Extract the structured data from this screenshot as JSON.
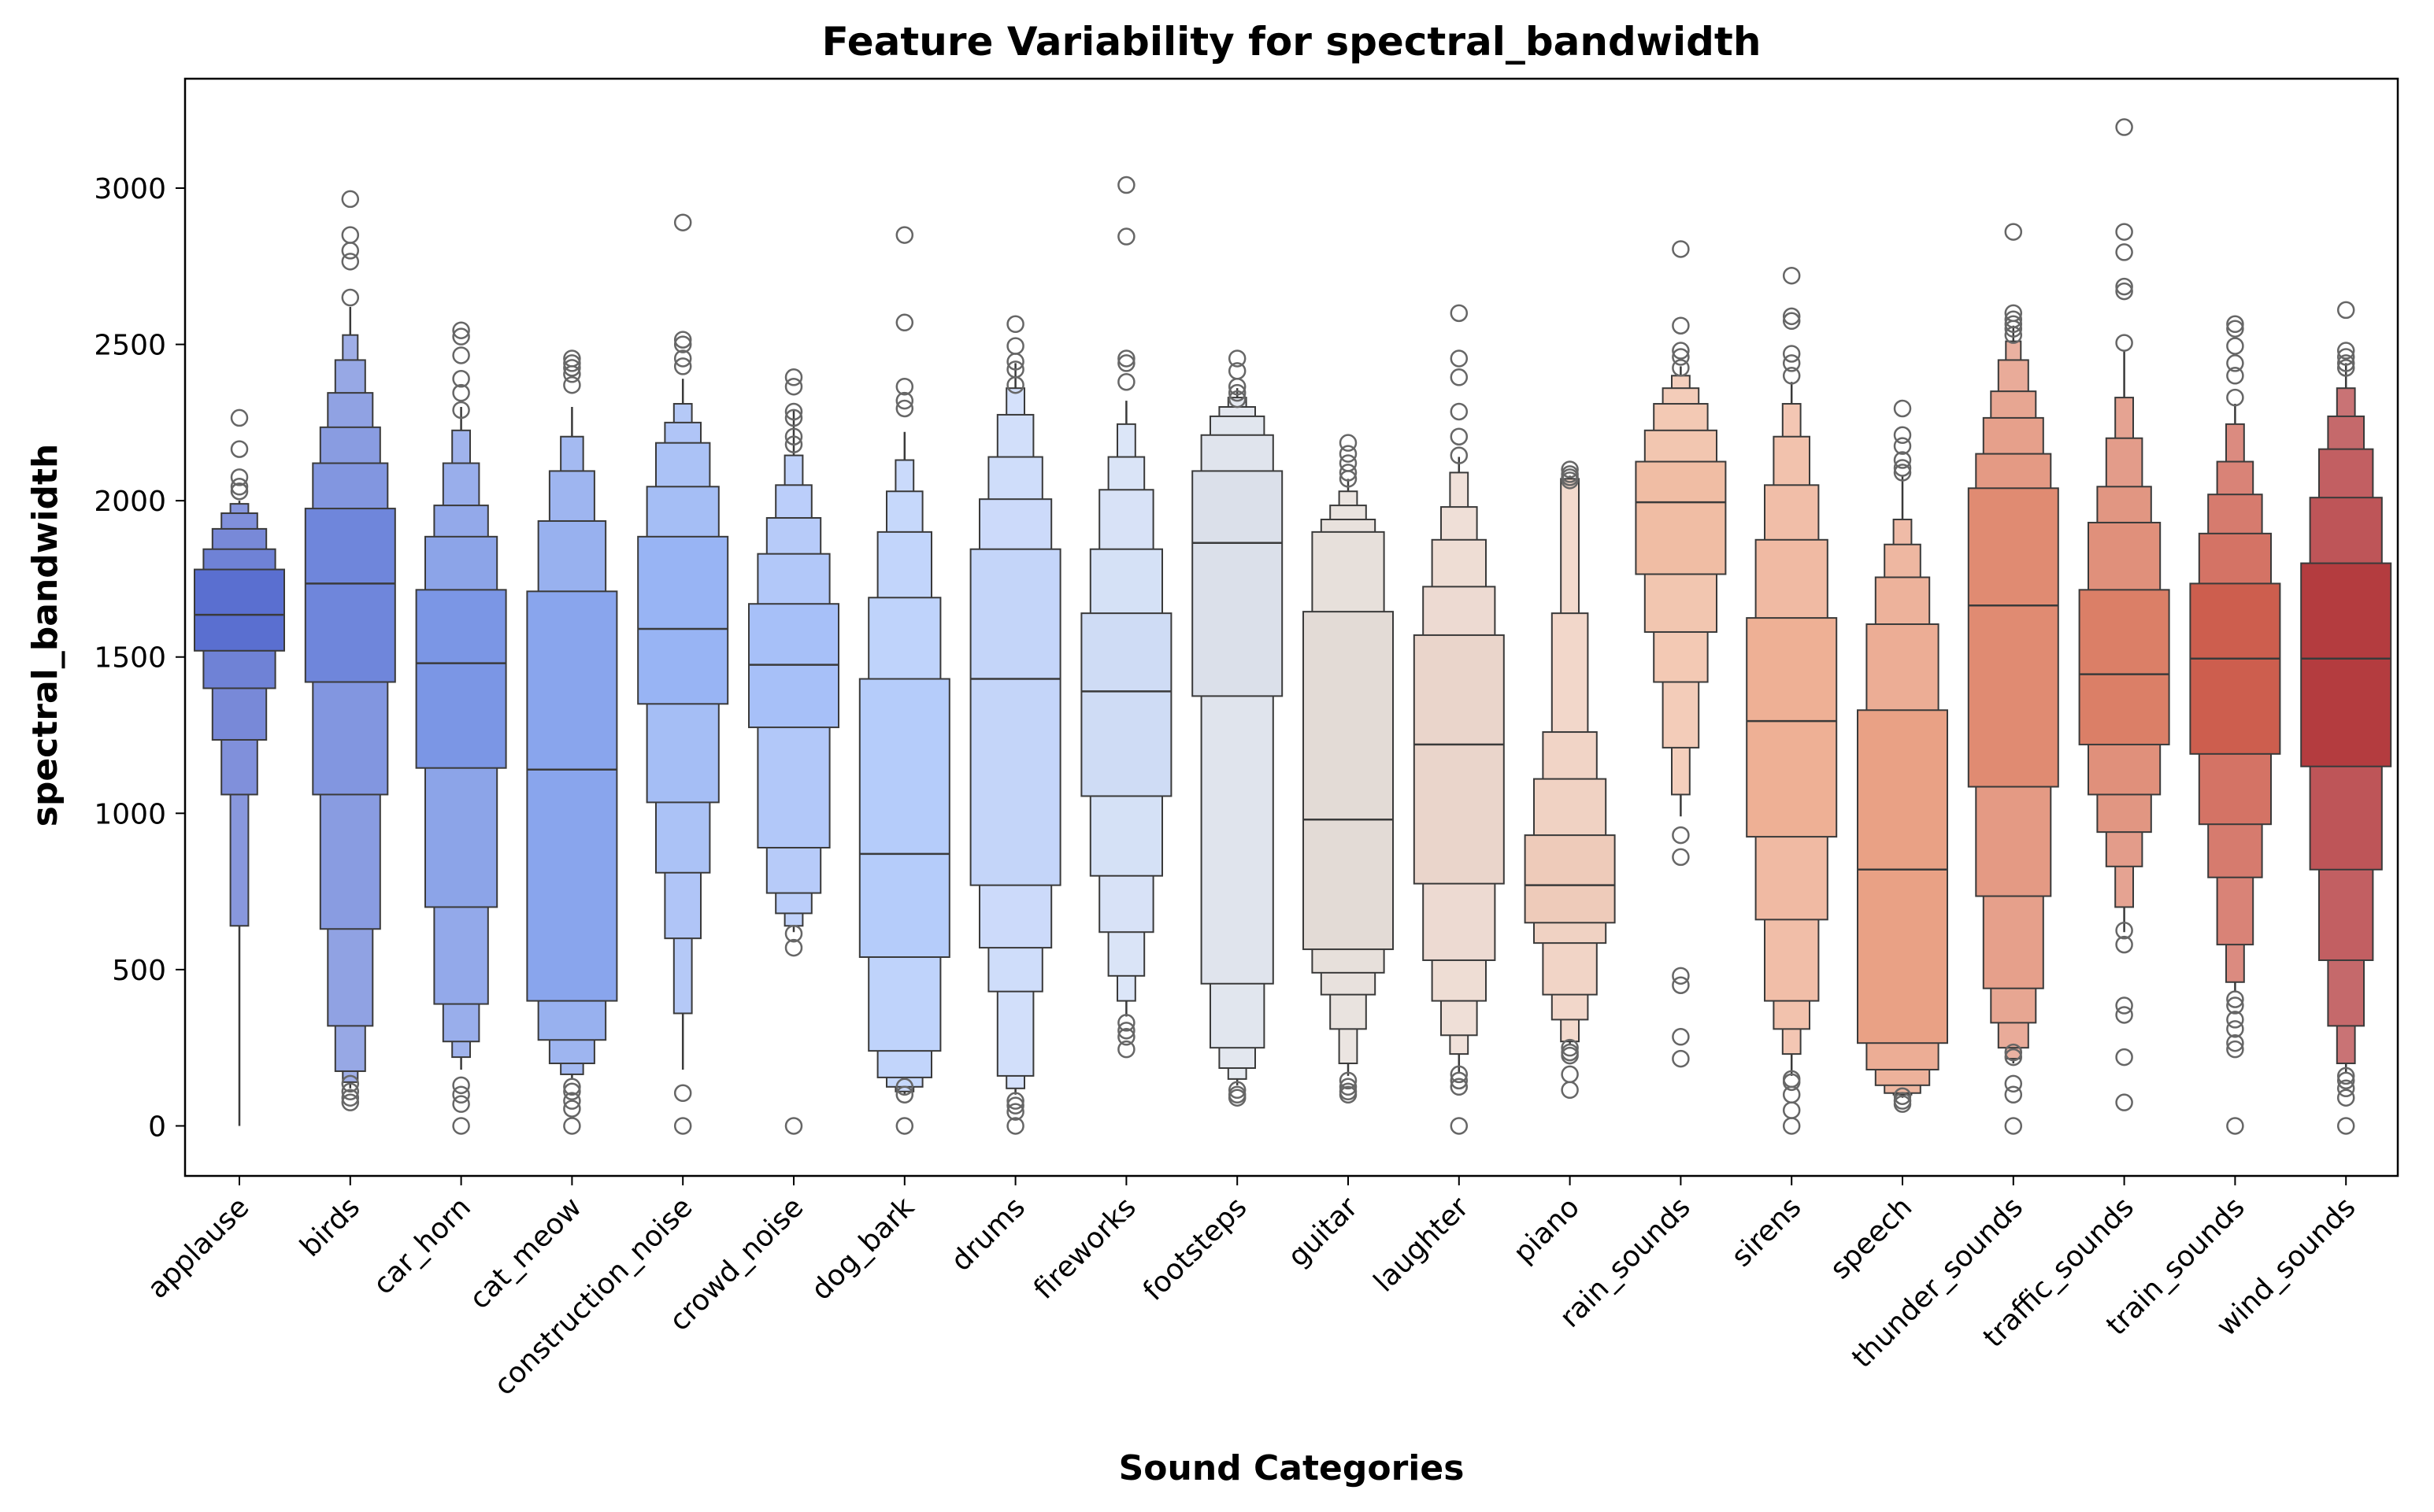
{
  "chart_data": {
    "type": "boxen",
    "title": "Feature Variability for spectral_bandwidth",
    "xlabel": "Sound Categories",
    "ylabel": "spectral_bandwidth",
    "ylim": [
      -160,
      3350
    ],
    "yticks": [
      0,
      500,
      1000,
      1500,
      2000,
      2500,
      3000
    ],
    "ytick_labels": [
      "0",
      "500",
      "1000",
      "1500",
      "2000",
      "2500",
      "3000"
    ],
    "grid": false,
    "palette": "coolwarm",
    "categories": [
      "applause",
      "birds",
      "car_horn",
      "cat_meow",
      "construction_noise",
      "crowd_noise",
      "dog_bark",
      "drums",
      "fireworks",
      "footsteps",
      "guitar",
      "laughter",
      "piano",
      "rain_sounds",
      "sirens",
      "speech",
      "thunder_sounds",
      "traffic_sounds",
      "train_sounds",
      "wind_sounds"
    ],
    "series": [
      {
        "name": "applause",
        "color": "#5a6fd0",
        "median": 1635,
        "levels": [
          [
            1520,
            1780
          ],
          [
            1400,
            1845
          ],
          [
            1235,
            1910
          ],
          [
            1060,
            1960
          ],
          [
            640,
            1990
          ]
        ],
        "whisker": [
          0,
          2000
        ],
        "outliers": [
          2265,
          2165,
          2075,
          2045,
          2030
        ]
      },
      {
        "name": "birds",
        "color": "#6f86db",
        "median": 1735,
        "levels": [
          [
            1420,
            1975
          ],
          [
            1060,
            2120
          ],
          [
            630,
            2235
          ],
          [
            320,
            2345
          ],
          [
            175,
            2450
          ],
          [
            140,
            2530
          ]
        ],
        "whisker": [
          120,
          2620
        ],
        "outliers": [
          2965,
          2850,
          2800,
          2765,
          2650,
          135,
          110,
          90,
          75
        ]
      },
      {
        "name": "car_horn",
        "color": "#7b96e5",
        "median": 1480,
        "levels": [
          [
            1145,
            1715
          ],
          [
            700,
            1885
          ],
          [
            390,
            1985
          ],
          [
            270,
            2120
          ],
          [
            220,
            2225
          ]
        ],
        "whisker": [
          180,
          2300
        ],
        "outliers": [
          2545,
          2525,
          2465,
          2390,
          2345,
          2290,
          130,
          100,
          70,
          0
        ]
      },
      {
        "name": "cat_meow",
        "color": "#89a5ed",
        "median": 1140,
        "levels": [
          [
            400,
            1710
          ],
          [
            275,
            1935
          ],
          [
            200,
            2095
          ],
          [
            165,
            2205
          ]
        ],
        "whisker": [
          150,
          2300
        ],
        "outliers": [
          2455,
          2440,
          2425,
          2405,
          2370,
          125,
          110,
          80,
          55,
          0
        ]
      },
      {
        "name": "construction_noise",
        "color": "#98b4f4",
        "median": 1590,
        "levels": [
          [
            1350,
            1885
          ],
          [
            1035,
            2045
          ],
          [
            810,
            2185
          ],
          [
            600,
            2250
          ],
          [
            360,
            2310
          ]
        ],
        "whisker": [
          180,
          2390
        ],
        "outliers": [
          2890,
          2515,
          2500,
          2455,
          2430,
          105,
          0
        ]
      },
      {
        "name": "crowd_noise",
        "color": "#a7c0f8",
        "median": 1475,
        "levels": [
          [
            1275,
            1670
          ],
          [
            890,
            1830
          ],
          [
            745,
            1945
          ],
          [
            680,
            2050
          ],
          [
            640,
            2145
          ]
        ],
        "whisker": [
          620,
          2290
        ],
        "outliers": [
          2395,
          2365,
          2285,
          2265,
          2205,
          2180,
          615,
          570,
          0
        ]
      },
      {
        "name": "dog_bark",
        "color": "#b5ccfa",
        "median": 870,
        "levels": [
          [
            540,
            1430
          ],
          [
            240,
            1690
          ],
          [
            155,
            1900
          ],
          [
            125,
            2030
          ],
          [
            110,
            2130
          ]
        ],
        "whisker": [
          100,
          2220
        ],
        "outliers": [
          2850,
          2570,
          2365,
          2320,
          2295,
          125,
          100,
          0
        ]
      },
      {
        "name": "drums",
        "color": "#c4d5f9",
        "median": 1430,
        "levels": [
          [
            770,
            1845
          ],
          [
            570,
            2005
          ],
          [
            430,
            2140
          ],
          [
            160,
            2275
          ],
          [
            120,
            2360
          ]
        ],
        "whisker": [
          100,
          2440
        ],
        "outliers": [
          2565,
          2495,
          2445,
          2420,
          2370,
          80,
          65,
          45,
          0
        ]
      },
      {
        "name": "fireworks",
        "color": "#cfdcf5",
        "median": 1390,
        "levels": [
          [
            1055,
            1640
          ],
          [
            800,
            1845
          ],
          [
            620,
            2035
          ],
          [
            480,
            2140
          ],
          [
            400,
            2245
          ]
        ],
        "whisker": [
          350,
          2320
        ],
        "outliers": [
          3010,
          2845,
          2455,
          2440,
          2380,
          330,
          305,
          285,
          245
        ]
      },
      {
        "name": "footsteps",
        "color": "#dbe0ea",
        "median": 1865,
        "levels": [
          [
            1375,
            2095
          ],
          [
            455,
            2210
          ],
          [
            250,
            2270
          ],
          [
            185,
            2300
          ],
          [
            150,
            2330
          ]
        ],
        "whisker": [
          130,
          2360
        ],
        "outliers": [
          2455,
          2415,
          2365,
          2345,
          2325,
          115,
          100,
          90
        ]
      },
      {
        "name": "guitar",
        "color": "#e3dbd6",
        "median": 980,
        "levels": [
          [
            565,
            1645
          ],
          [
            490,
            1900
          ],
          [
            420,
            1940
          ],
          [
            310,
            1985
          ],
          [
            200,
            2030
          ]
        ],
        "whisker": [
          160,
          2070
        ],
        "outliers": [
          2185,
          2150,
          2120,
          2090,
          2070,
          145,
          125,
          110,
          100
        ]
      },
      {
        "name": "laughter",
        "color": "#ead5cb",
        "median": 1220,
        "levels": [
          [
            775,
            1570
          ],
          [
            530,
            1725
          ],
          [
            400,
            1875
          ],
          [
            290,
            1980
          ],
          [
            230,
            2090
          ]
        ],
        "whisker": [
          170,
          2140
        ],
        "outliers": [
          2600,
          2455,
          2395,
          2285,
          2205,
          2145,
          165,
          145,
          125,
          0
        ]
      },
      {
        "name": "piano",
        "color": "#eecbba",
        "median": 770,
        "levels": [
          [
            650,
            930
          ],
          [
            585,
            1110
          ],
          [
            420,
            1260
          ],
          [
            340,
            1640
          ],
          [
            270,
            2070
          ]
        ],
        "whisker": [
          260,
          2080
        ],
        "outliers": [
          2100,
          2085,
          2075,
          2065,
          250,
          235,
          225,
          165,
          115
        ]
      },
      {
        "name": "rain_sounds",
        "color": "#f0bda4",
        "median": 1995,
        "levels": [
          [
            1765,
            2125
          ],
          [
            1580,
            2225
          ],
          [
            1420,
            2310
          ],
          [
            1210,
            2360
          ],
          [
            1060,
            2400
          ]
        ],
        "whisker": [
          990,
          2430
        ],
        "outliers": [
          2805,
          2560,
          2480,
          2460,
          2425,
          930,
          860,
          480,
          450,
          285,
          215
        ]
      },
      {
        "name": "sirens",
        "color": "#eeb095",
        "median": 1295,
        "levels": [
          [
            925,
            1625
          ],
          [
            660,
            1875
          ],
          [
            400,
            2050
          ],
          [
            310,
            2205
          ],
          [
            230,
            2310
          ]
        ],
        "whisker": [
          160,
          2380
        ],
        "outliers": [
          2720,
          2590,
          2575,
          2470,
          2440,
          2400,
          150,
          140,
          100,
          50,
          0
        ]
      },
      {
        "name": "speech",
        "color": "#e9a185",
        "median": 820,
        "levels": [
          [
            265,
            1330
          ],
          [
            180,
            1605
          ],
          [
            130,
            1755
          ],
          [
            105,
            1860
          ],
          [
            100,
            1940
          ]
        ],
        "whisker": [
          90,
          2080
        ],
        "outliers": [
          2295,
          2210,
          2175,
          2130,
          2105,
          2090,
          95,
          80,
          70
        ]
      },
      {
        "name": "thunder_sounds",
        "color": "#e08b72",
        "median": 1665,
        "levels": [
          [
            1085,
            2040
          ],
          [
            735,
            2150
          ],
          [
            440,
            2265
          ],
          [
            330,
            2350
          ],
          [
            250,
            2450
          ],
          [
            215,
            2510
          ]
        ],
        "whisker": [
          200,
          2560
        ],
        "outliers": [
          2860,
          2600,
          2580,
          2565,
          2550,
          2530,
          235,
          220,
          135,
          100,
          0
        ]
      },
      {
        "name": "traffic_sounds",
        "color": "#db7f67",
        "median": 1445,
        "levels": [
          [
            1220,
            1715
          ],
          [
            1060,
            1930
          ],
          [
            940,
            2045
          ],
          [
            830,
            2200
          ],
          [
            700,
            2330
          ]
        ],
        "whisker": [
          620,
          2480
        ],
        "outliers": [
          3195,
          2860,
          2795,
          2685,
          2670,
          2505,
          625,
          580,
          385,
          355,
          220,
          75
        ]
      },
      {
        "name": "train_sounds",
        "color": "#cd5e4e",
        "median": 1495,
        "levels": [
          [
            1190,
            1735
          ],
          [
            965,
            1895
          ],
          [
            795,
            2020
          ],
          [
            580,
            2125
          ],
          [
            460,
            2245
          ]
        ],
        "whisker": [
          430,
          2310
        ],
        "outliers": [
          2565,
          2550,
          2495,
          2440,
          2400,
          2330,
          405,
          385,
          340,
          310,
          265,
          245,
          0
        ]
      },
      {
        "name": "wind_sounds",
        "color": "#b43c3f",
        "median": 1495,
        "levels": [
          [
            1150,
            1800
          ],
          [
            820,
            2010
          ],
          [
            530,
            2165
          ],
          [
            320,
            2270
          ],
          [
            200,
            2360
          ]
        ],
        "whisker": [
          170,
          2440
        ],
        "outliers": [
          2610,
          2480,
          2460,
          2440,
          2425,
          160,
          145,
          120,
          90,
          0
        ]
      }
    ]
  }
}
